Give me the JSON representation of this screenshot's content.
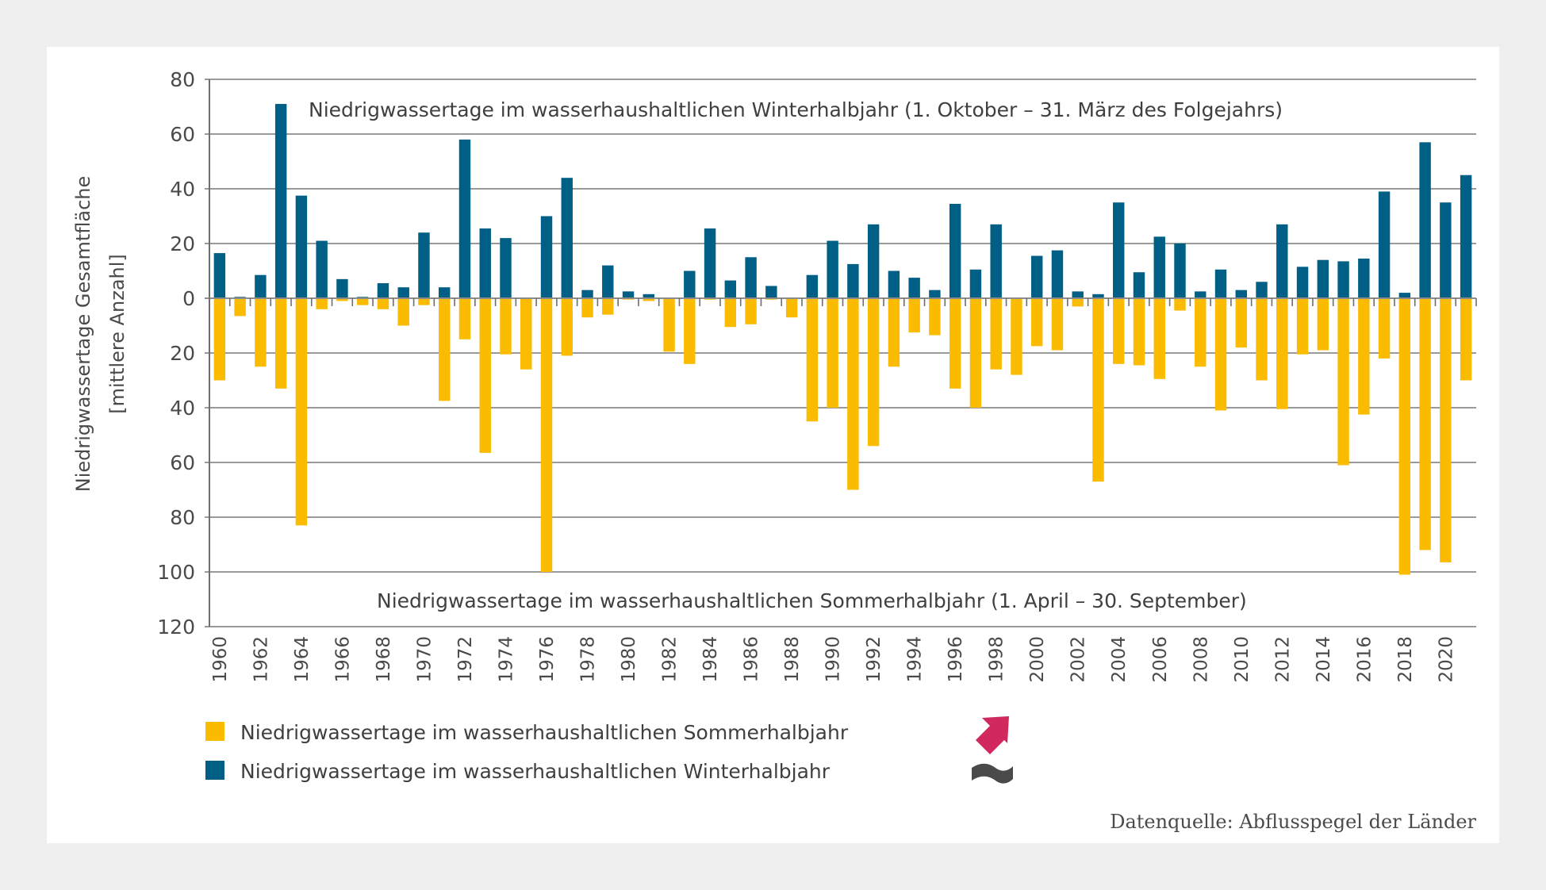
{
  "chart_data": {
    "type": "bar",
    "title": "",
    "ylabel": "Niedrigwassertage Gesamtfläche [mittlere Anzahl]",
    "ylabel_lines": [
      "Niedrigwassertage Gesamtfläche",
      "[mittlere Anzahl]"
    ],
    "xlabel": "",
    "y_ticks_up": [
      0,
      20,
      40,
      60,
      80
    ],
    "y_ticks_down": [
      20,
      40,
      60,
      80,
      100,
      120
    ],
    "ylim": [
      -120,
      80
    ],
    "grid": true,
    "x": [
      1960,
      1961,
      1962,
      1963,
      1964,
      1965,
      1966,
      1967,
      1968,
      1969,
      1970,
      1971,
      1972,
      1973,
      1974,
      1975,
      1976,
      1977,
      1978,
      1979,
      1980,
      1981,
      1982,
      1983,
      1984,
      1985,
      1986,
      1987,
      1988,
      1989,
      1990,
      1991,
      1992,
      1993,
      1994,
      1995,
      1996,
      1997,
      1998,
      1999,
      2000,
      2001,
      2002,
      2003,
      2004,
      2005,
      2006,
      2007,
      2008,
      2009,
      2010,
      2011,
      2012,
      2013,
      2014,
      2015,
      2016,
      2017,
      2018,
      2019,
      2020,
      2021
    ],
    "x_tick_labels": [
      "1960",
      "1962",
      "1964",
      "1966",
      "1968",
      "1970",
      "1972",
      "1974",
      "1976",
      "1978",
      "1980",
      "1982",
      "1984",
      "1986",
      "1988",
      "1990",
      "1992",
      "1994",
      "1996",
      "1998",
      "2000",
      "2002",
      "2004",
      "2006",
      "2008",
      "2010",
      "2012",
      "2014",
      "2016",
      "2018",
      "2020"
    ],
    "series": [
      {
        "name": "Niedrigwassertage im wasserhaushaltlichen Winterhalbjahr",
        "direction": "up",
        "color": "#005f85",
        "values": [
          16.5,
          0.5,
          8.5,
          71,
          37.5,
          21,
          7,
          0.5,
          5.5,
          4,
          24,
          4,
          58,
          25.5,
          22,
          0.3,
          30,
          44,
          3,
          12,
          2.5,
          1.5,
          0,
          10,
          25.5,
          6.5,
          15,
          4.5,
          0.3,
          8.5,
          21,
          12.5,
          27,
          10,
          7.5,
          3,
          34.5,
          10.5,
          27,
          0.3,
          15.5,
          17.5,
          2.5,
          1.5,
          35,
          9.5,
          22.5,
          20,
          2.5,
          10.5,
          3,
          6,
          27,
          11.5,
          14,
          13.5,
          14.5,
          39,
          2,
          57,
          35,
          45
        ]
      },
      {
        "name": "Niedrigwassertage im wasserhaushaltlichen Sommerhalbjahr",
        "direction": "down",
        "color": "#fabb00",
        "values": [
          30,
          6.5,
          25,
          33,
          83,
          4,
          1,
          2.5,
          4,
          10,
          2.5,
          37.5,
          15,
          56.5,
          20.5,
          26,
          100,
          21,
          7,
          6,
          0.5,
          1,
          19.5,
          24,
          0.5,
          10.5,
          9.5,
          0.5,
          7,
          45,
          40,
          70,
          54,
          25,
          12.5,
          13.5,
          33,
          40,
          26,
          28,
          17.5,
          19,
          3,
          67,
          24,
          24.5,
          29.5,
          4.5,
          25,
          41,
          18,
          30,
          40.5,
          20.5,
          19,
          61,
          42.5,
          22,
          101,
          92,
          96.5,
          30
        ]
      }
    ],
    "annotations": {
      "winter": "Niedrigwassertage im wasserhaushaltlichen Winterhalbjahr (1. Oktober – 31. März des Folgejahrs)",
      "summer": "Niedrigwassertage im wasserhaushaltlichen Sommerhalbjahr (1. April – 30. September)"
    },
    "legend": {
      "placement": "bottom-left",
      "items": [
        {
          "label": "Niedrigwassertage im wasserhaushaltlichen Sommerhalbjahr",
          "color": "#fabb00",
          "trend_icon": "trend-up-arrow-icon",
          "trend_color": "#d1285e"
        },
        {
          "label": "Niedrigwassertage im wasserhaushaltlichen Winterhalbjahr",
          "color": "#005f85",
          "trend_icon": "trend-none-wave-icon",
          "trend_color": "#4a4a4a"
        }
      ]
    },
    "source": "Datenquelle: Abflusspegel der Länder"
  }
}
